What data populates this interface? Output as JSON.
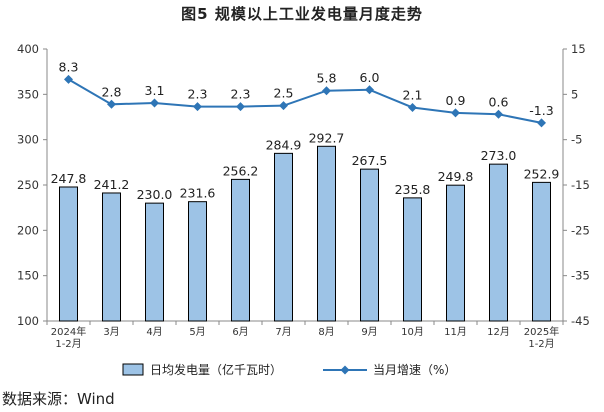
{
  "chart_data": {
    "type": "bar",
    "title": "图5  规模以上工业发电量月度走势",
    "categories": [
      [
        "2024年",
        "1-2月"
      ],
      [
        "3月"
      ],
      [
        "4月"
      ],
      [
        "5月"
      ],
      [
        "6月"
      ],
      [
        "7月"
      ],
      [
        "8月"
      ],
      [
        "9月"
      ],
      [
        "10月"
      ],
      [
        "11月"
      ],
      [
        "12月"
      ],
      [
        "2025年",
        "1-2月"
      ]
    ],
    "series": [
      {
        "name": "日均发电量（亿千瓦时）",
        "type": "bar",
        "axis": "left",
        "color": "#9DC3E6",
        "stroke": "#000000",
        "values": [
          247.8,
          241.2,
          230.0,
          231.6,
          256.2,
          284.9,
          292.7,
          267.5,
          235.8,
          249.8,
          273.0,
          252.9
        ],
        "labels": [
          "247.8",
          "241.2",
          "230.0",
          "231.6",
          "256.2",
          "284.9",
          "292.7",
          "267.5",
          "235.8",
          "249.8",
          "273.0",
          "252.9"
        ]
      },
      {
        "name": "当月增速（%）",
        "type": "line",
        "axis": "right",
        "color": "#2E75B6",
        "values": [
          8.3,
          2.8,
          3.1,
          2.3,
          2.3,
          2.5,
          5.8,
          6.0,
          2.1,
          0.9,
          0.6,
          -1.3
        ],
        "labels": [
          "8.3",
          "2.8",
          "3.1",
          "2.3",
          "2.3",
          "2.5",
          "5.8",
          "6.0",
          "2.1",
          "0.9",
          "0.6",
          "-1.3"
        ]
      }
    ],
    "y_left": {
      "min": 100,
      "max": 400,
      "ticks": [
        "100",
        "150",
        "200",
        "250",
        "300",
        "350",
        "400"
      ]
    },
    "y_right": {
      "min": -45,
      "max": 15,
      "ticks": [
        "-45",
        "-35",
        "-25",
        "-15",
        "-5",
        "5",
        "15"
      ]
    },
    "grid": false,
    "legend_position": "bottom"
  },
  "source": "数据来源：Wind"
}
